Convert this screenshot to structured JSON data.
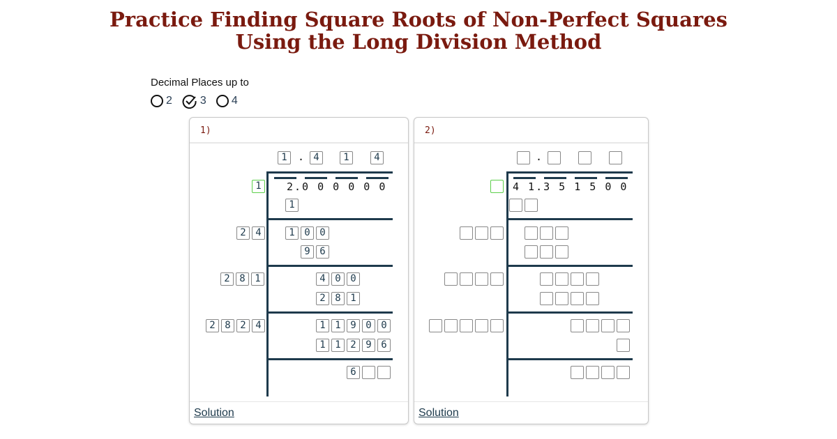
{
  "title_line1": "Practice Finding Square Roots of Non-Perfect Squares",
  "title_line2": "Using the Long Division Method",
  "decimal_options": {
    "label": "Decimal Places up to",
    "options": [
      "2",
      "3",
      "4"
    ],
    "selected": "3"
  },
  "problems": [
    {
      "number": "1)",
      "dividend": "2.0 0 0 0 0 0",
      "root": [
        "1",
        "4",
        "1",
        "4"
      ],
      "first_divisor": [
        "1"
      ],
      "groups": {
        "s1": [
          "1"
        ],
        "d2": [
          "2",
          "4"
        ],
        "r2a": [
          "1",
          "0",
          "0"
        ],
        "r2b": [
          "9",
          "6"
        ],
        "d3": [
          "2",
          "8",
          "1"
        ],
        "r3a": [
          "4",
          "0",
          "0"
        ],
        "r3b": [
          "2",
          "8",
          "1"
        ],
        "d4": [
          "2",
          "8",
          "2",
          "4"
        ],
        "r4a": [
          "1",
          "1",
          "9",
          "0",
          "0"
        ],
        "r4b": [
          "1",
          "1",
          "2",
          "9",
          "6"
        ],
        "rem": [
          "6",
          "",
          ""
        ]
      },
      "solution_label": "Solution"
    },
    {
      "number": "2)",
      "dividend": "4 1.3 5 1 5 0 0",
      "root": [
        "",
        "",
        "",
        ""
      ],
      "first_divisor": [
        ""
      ],
      "groups": {
        "s1": [
          "",
          ""
        ],
        "d2": [
          "",
          "",
          ""
        ],
        "r2a": [
          "",
          "",
          ""
        ],
        "r2b": [
          "",
          "",
          ""
        ],
        "d3": [
          "",
          "",
          "",
          ""
        ],
        "r3a": [
          "",
          "",
          "",
          ""
        ],
        "r3b": [
          "",
          "",
          "",
          ""
        ],
        "d4": [
          "",
          "",
          "",
          "",
          ""
        ],
        "r4a": [
          "",
          "",
          "",
          ""
        ],
        "r4b": [
          ""
        ],
        "rem": [
          "",
          "",
          "",
          ""
        ]
      },
      "solution_label": "Solution"
    }
  ]
}
